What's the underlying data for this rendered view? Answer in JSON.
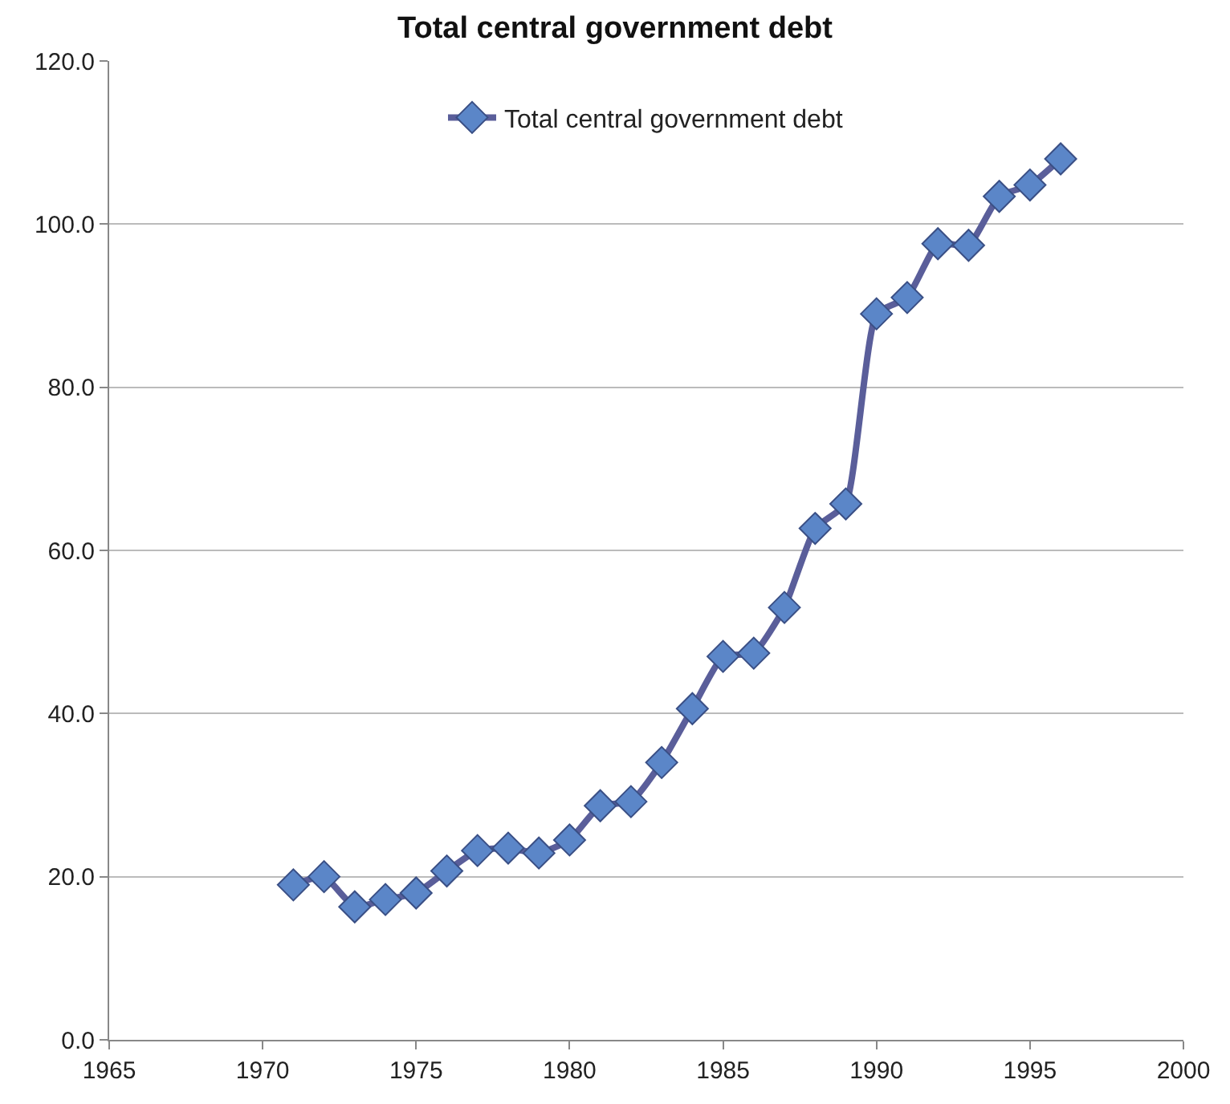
{
  "chart_data": {
    "type": "line",
    "title": "Total central government debt",
    "x": [
      1971,
      1972,
      1973,
      1974,
      1975,
      1976,
      1977,
      1978,
      1979,
      1980,
      1981,
      1982,
      1983,
      1984,
      1985,
      1986,
      1987,
      1988,
      1989,
      1990,
      1991,
      1992,
      1993,
      1994,
      1995,
      1996
    ],
    "series": [
      {
        "name": "Total central government debt",
        "color": "#5a5e9a",
        "values": [
          19.0,
          20.0,
          16.3,
          17.2,
          18.0,
          20.7,
          23.2,
          23.5,
          22.9,
          24.5,
          28.7,
          29.2,
          34.0,
          40.6,
          47.0,
          47.4,
          53.0,
          62.7,
          65.7,
          89.0,
          91.0,
          97.6,
          97.4,
          103.4,
          104.8,
          108.0
        ]
      }
    ],
    "xlim": [
      1965,
      2000
    ],
    "xticks": [
      1965,
      1970,
      1975,
      1980,
      1985,
      1990,
      1995,
      2000
    ],
    "ylim": [
      0,
      120
    ],
    "yticks": [
      {
        "value": 0,
        "label": "0.0"
      },
      {
        "value": 20,
        "label": "20.0"
      },
      {
        "value": 40,
        "label": "40.0"
      },
      {
        "value": 60,
        "label": "60.0"
      },
      {
        "value": 80,
        "label": "80.0"
      },
      {
        "value": 100,
        "label": "100.0"
      },
      {
        "value": 120,
        "label": "120.0"
      }
    ],
    "grid": "y",
    "legend": "top",
    "marker": "diamond",
    "line_style": "solid"
  }
}
